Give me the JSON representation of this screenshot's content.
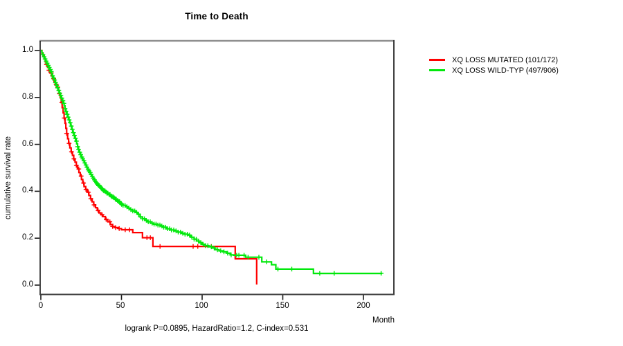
{
  "chart_data": {
    "type": "line",
    "subtype": "kaplan-meier-step-survival",
    "title": "Time to Death",
    "xlabel": "Month",
    "ylabel": "cumulative survival rate",
    "annotation": "logrank P=0.0895, HazardRatio=1.2, C-index=0.531",
    "xlim": [
      0,
      219
    ],
    "ylim": [
      0,
      1.04
    ],
    "grid": false,
    "legend_position": "right-outside",
    "x_ticks": [
      "0",
      "50",
      "100",
      "150",
      "200"
    ],
    "x_tick_values": [
      0,
      50,
      100,
      150,
      200
    ],
    "y_ticks": [
      "1.0",
      "0.8",
      "0.6",
      "0.4",
      "0.2",
      "0.0"
    ],
    "y_tick_values": [
      1.0,
      0.8,
      0.6,
      0.4,
      0.2,
      0.0
    ],
    "series": [
      {
        "name": "XQ LOSS MUTATED (101/172)",
        "color": "#ff0000",
        "steps": [
          [
            0,
            1.0
          ],
          [
            0.7,
            0.988
          ],
          [
            1.4,
            0.976
          ],
          [
            2.1,
            0.964
          ],
          [
            2.8,
            0.952
          ],
          [
            3.5,
            0.94
          ],
          [
            4.2,
            0.928
          ],
          [
            5,
            0.916
          ],
          [
            5.8,
            0.904
          ],
          [
            6.6,
            0.892
          ],
          [
            7.4,
            0.88
          ],
          [
            8.2,
            0.868
          ],
          [
            9,
            0.856
          ],
          [
            9.8,
            0.844
          ],
          [
            10.6,
            0.83
          ],
          [
            11.4,
            0.816
          ],
          [
            12,
            0.8
          ],
          [
            12.6,
            0.778
          ],
          [
            13.2,
            0.756
          ],
          [
            13.8,
            0.734
          ],
          [
            14.4,
            0.712
          ],
          [
            15,
            0.69
          ],
          [
            15.5,
            0.668
          ],
          [
            16,
            0.646
          ],
          [
            16.6,
            0.624
          ],
          [
            17.2,
            0.604
          ],
          [
            18,
            0.585
          ],
          [
            18.8,
            0.568
          ],
          [
            19.6,
            0.553
          ],
          [
            20.4,
            0.538
          ],
          [
            21.2,
            0.524
          ],
          [
            22,
            0.51
          ],
          [
            22.8,
            0.495
          ],
          [
            23.6,
            0.48
          ],
          [
            24.4,
            0.465
          ],
          [
            25.2,
            0.45
          ],
          [
            26,
            0.435
          ],
          [
            26.8,
            0.42
          ],
          [
            27.8,
            0.408
          ],
          [
            28.8,
            0.396
          ],
          [
            29.8,
            0.382
          ],
          [
            30.8,
            0.368
          ],
          [
            31.8,
            0.355
          ],
          [
            32.8,
            0.342
          ],
          [
            33.9,
            0.33
          ],
          [
            35,
            0.318
          ],
          [
            36.1,
            0.308
          ],
          [
            37.2,
            0.3
          ],
          [
            38.5,
            0.292
          ],
          [
            40,
            0.28
          ],
          [
            41.5,
            0.27
          ],
          [
            43,
            0.258
          ],
          [
            44.5,
            0.25
          ],
          [
            46,
            0.245
          ],
          [
            48,
            0.241
          ],
          [
            50,
            0.236
          ],
          [
            57,
            0.224
          ],
          [
            63,
            0.202
          ],
          [
            69.5,
            0.165
          ],
          [
            120.5,
            0.112
          ],
          [
            133.8,
            0.002
          ]
        ],
        "censor_months": [
          3.5,
          5,
          6.5,
          8,
          9.5,
          10.5,
          11.5,
          13,
          14.5,
          16,
          17.5,
          19,
          20.5,
          22,
          23.5,
          25,
          26.5,
          28,
          29.5,
          31,
          33,
          35.5,
          38,
          40.5,
          42.8,
          44.5,
          46.4,
          48.6,
          52.3,
          55,
          65.8,
          67.9,
          73.9,
          94.4,
          97.3,
          105.7
        ]
      },
      {
        "name": "XQ LOSS WILD-TYP (497/906)",
        "color": "#00e80b",
        "steps": [
          [
            0,
            1.0
          ],
          [
            0.6,
            0.991
          ],
          [
            1.2,
            0.982
          ],
          [
            1.8,
            0.973
          ],
          [
            2.4,
            0.964
          ],
          [
            3,
            0.955
          ],
          [
            3.6,
            0.946
          ],
          [
            4.2,
            0.937
          ],
          [
            4.8,
            0.928
          ],
          [
            5.4,
            0.919
          ],
          [
            6,
            0.91
          ],
          [
            6.6,
            0.901
          ],
          [
            7.2,
            0.892
          ],
          [
            7.8,
            0.883
          ],
          [
            8.4,
            0.874
          ],
          [
            9,
            0.863
          ],
          [
            9.6,
            0.852
          ],
          [
            10.2,
            0.841
          ],
          [
            10.8,
            0.83
          ],
          [
            11.4,
            0.819
          ],
          [
            12,
            0.808
          ],
          [
            12.6,
            0.797
          ],
          [
            13.2,
            0.786
          ],
          [
            13.8,
            0.775
          ],
          [
            14.4,
            0.764
          ],
          [
            15,
            0.752
          ],
          [
            15.6,
            0.74
          ],
          [
            16.2,
            0.728
          ],
          [
            16.8,
            0.716
          ],
          [
            17.4,
            0.704
          ],
          [
            18,
            0.692
          ],
          [
            18.6,
            0.678
          ],
          [
            19.2,
            0.664
          ],
          [
            19.8,
            0.65
          ],
          [
            20.4,
            0.638
          ],
          [
            21,
            0.626
          ],
          [
            21.6,
            0.614
          ],
          [
            22.2,
            0.602
          ],
          [
            22.8,
            0.59
          ],
          [
            23.4,
            0.578
          ],
          [
            24,
            0.566
          ],
          [
            24.6,
            0.556
          ],
          [
            25.2,
            0.546
          ],
          [
            25.8,
            0.538
          ],
          [
            26.4,
            0.53
          ],
          [
            27,
            0.521
          ],
          [
            27.6,
            0.512
          ],
          [
            28.2,
            0.503
          ],
          [
            28.8,
            0.494
          ],
          [
            29.4,
            0.487
          ],
          [
            30,
            0.48
          ],
          [
            30.7,
            0.472
          ],
          [
            31.4,
            0.464
          ],
          [
            32.1,
            0.456
          ],
          [
            32.8,
            0.449
          ],
          [
            33.5,
            0.442
          ],
          [
            34.2,
            0.436
          ],
          [
            35,
            0.43
          ],
          [
            35.8,
            0.424
          ],
          [
            36.6,
            0.418
          ],
          [
            37.4,
            0.412
          ],
          [
            38.2,
            0.406
          ],
          [
            39,
            0.402
          ],
          [
            40,
            0.398
          ],
          [
            41,
            0.392
          ],
          [
            42,
            0.386
          ],
          [
            43,
            0.38
          ],
          [
            44,
            0.376
          ],
          [
            45,
            0.372
          ],
          [
            46,
            0.366
          ],
          [
            47,
            0.361
          ],
          [
            48,
            0.356
          ],
          [
            49,
            0.35
          ],
          [
            50,
            0.344
          ],
          [
            51,
            0.34
          ],
          [
            52.5,
            0.334
          ],
          [
            54,
            0.328
          ],
          [
            55.5,
            0.322
          ],
          [
            57,
            0.316
          ],
          [
            58.5,
            0.31
          ],
          [
            60,
            0.302
          ],
          [
            61.5,
            0.291
          ],
          [
            63,
            0.283
          ],
          [
            64.5,
            0.276
          ],
          [
            66,
            0.27
          ],
          [
            68,
            0.264
          ],
          [
            70,
            0.26
          ],
          [
            72,
            0.256
          ],
          [
            74,
            0.252
          ],
          [
            76,
            0.247
          ],
          [
            78,
            0.24
          ],
          [
            80,
            0.235
          ],
          [
            82.5,
            0.231
          ],
          [
            85,
            0.226
          ],
          [
            87,
            0.221
          ],
          [
            89,
            0.217
          ],
          [
            91,
            0.213
          ],
          [
            93,
            0.204
          ],
          [
            95,
            0.196
          ],
          [
            96.5,
            0.188
          ],
          [
            98,
            0.181
          ],
          [
            100,
            0.174
          ],
          [
            102,
            0.168
          ],
          [
            104,
            0.163
          ],
          [
            106,
            0.158
          ],
          [
            108,
            0.151
          ],
          [
            110.5,
            0.146
          ],
          [
            113,
            0.142
          ],
          [
            115.5,
            0.136
          ],
          [
            117.5,
            0.129
          ],
          [
            119.5,
            0.127
          ],
          [
            127,
            0.119
          ],
          [
            137,
            0.099
          ],
          [
            143,
            0.087
          ],
          [
            145.7,
            0.068
          ],
          [
            169,
            0.05
          ],
          [
            211.6,
            0.05
          ]
        ],
        "censor_months": [
          1.3,
          2,
          2.6,
          3.3,
          3.9,
          4.6,
          5.2,
          5.9,
          6.5,
          7.2,
          7.8,
          8.5,
          9.1,
          9.8,
          10.4,
          11.1,
          11.7,
          12.4,
          13,
          13.7,
          14.3,
          15,
          15.6,
          16.3,
          16.9,
          17.6,
          18.2,
          18.9,
          19.5,
          20.2,
          20.8,
          21.5,
          22.1,
          22.8,
          23.4,
          24.1,
          24.7,
          25.4,
          26,
          26.7,
          27.3,
          28,
          28.6,
          29.3,
          29.9,
          30.6,
          31.2,
          31.9,
          32.5,
          33.2,
          33.8,
          34.5,
          35.1,
          35.8,
          36.4,
          37.1,
          37.7,
          38.4,
          39,
          39.7,
          40.3,
          41,
          41.6,
          42.3,
          42.9,
          43.6,
          44.2,
          44.9,
          45.5,
          46.2,
          46.8,
          47.5,
          48.1,
          48.8,
          49.4,
          50.1,
          51,
          52.2,
          53.4,
          54.6,
          55.8,
          57,
          58.2,
          59.4,
          60.6,
          61.8,
          63,
          64.2,
          65.4,
          66.6,
          67.8,
          69,
          70.2,
          71.4,
          72.6,
          73.8,
          75,
          76.2,
          77.4,
          78.6,
          79.8,
          81,
          82.4,
          83.8,
          85.2,
          86.6,
          88,
          89.4,
          90.8,
          92.2,
          93.6,
          95,
          96.4,
          97.8,
          99.2,
          100.6,
          102,
          103.5,
          105.7,
          107.5,
          109.5,
          111.5,
          113.5,
          115.8,
          118,
          121.4,
          122.8,
          126,
          128.5,
          135.2,
          140,
          147,
          155.6,
          172.9,
          181.9,
          211
        ]
      }
    ]
  }
}
